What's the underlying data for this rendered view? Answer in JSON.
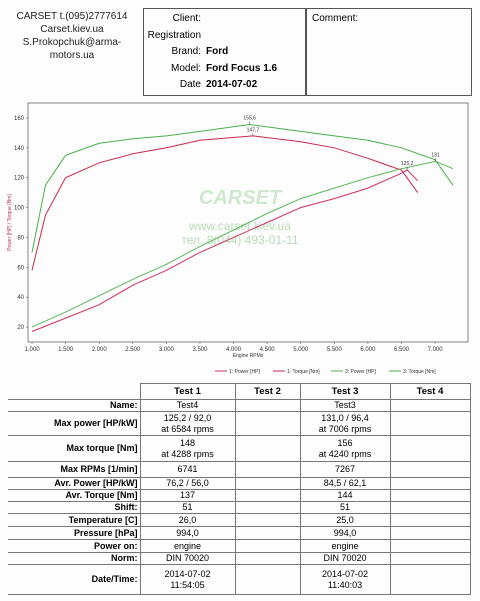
{
  "header": {
    "contact": [
      "CARSET  t.(095)2777614",
      "Carset.kiev.ua",
      "S.Prokopchuk@arma-motors.ua"
    ],
    "fields": [
      {
        "label": "Client:",
        "value": null
      },
      {
        "label": "Registration",
        "value": null
      },
      {
        "label": "Brand:",
        "value": "Ford"
      },
      {
        "label": "Model:",
        "value": "Ford Focus 1.6"
      },
      {
        "label": "Date",
        "value": "2014-07-02"
      }
    ],
    "comment": "Comment:"
  },
  "chart_data": {
    "type": "line",
    "y_label": "Power [HP] / Torque [Nm]",
    "x_label": "Engine RPMs",
    "xlim": [
      940,
      7490
    ],
    "ylim": [
      10,
      170
    ],
    "xticks": [
      {
        "value": 1000,
        "label": "1.000"
      },
      {
        "value": 1500,
        "label": "1.500"
      },
      {
        "value": 2000,
        "label": "2.000"
      },
      {
        "value": 2500,
        "label": "2.500"
      },
      {
        "value": 3000,
        "label": "3.000"
      },
      {
        "value": 3500,
        "label": "3.500"
      },
      {
        "value": 4000,
        "label": "4.000"
      },
      {
        "value": 4500,
        "label": "4.500"
      },
      {
        "value": 5000,
        "label": "5.000"
      },
      {
        "value": 5500,
        "label": "5.500"
      },
      {
        "value": 6000,
        "label": "6.000"
      },
      {
        "value": 6500,
        "label": "6.500"
      },
      {
        "value": 7000,
        "label": "7.000"
      }
    ],
    "yticks": [
      20,
      40,
      60,
      80,
      100,
      120,
      140,
      160
    ],
    "grid": false,
    "series": [
      {
        "name": "1: Power [HP]",
        "color": "#d0305a",
        "x": [
          1000,
          1500,
          2000,
          2500,
          3000,
          3500,
          4000,
          4500,
          5000,
          5500,
          6000,
          6500,
          6584,
          6741
        ],
        "values": [
          17,
          26,
          35,
          48,
          58,
          70,
          80,
          90,
          100,
          106,
          113,
          123,
          125.2,
          118
        ]
      },
      {
        "name": "1: Torque [Nm]",
        "color": "#c8284a",
        "x": [
          1000,
          1200,
          1500,
          2000,
          2500,
          3000,
          3500,
          4288,
          5000,
          5500,
          6000,
          6500,
          6741
        ],
        "values": [
          58,
          95,
          120,
          130,
          136,
          140,
          145,
          148,
          144,
          140,
          133,
          125,
          110
        ]
      },
      {
        "name": "3: Power [HP]",
        "color": "#58b858",
        "x": [
          1000,
          1500,
          2000,
          2500,
          3000,
          3500,
          4000,
          4500,
          5000,
          5500,
          6000,
          6500,
          7006,
          7267
        ],
        "values": [
          20,
          30,
          41,
          52,
          62,
          74,
          85,
          96,
          106,
          113,
          120,
          126,
          131,
          126
        ]
      },
      {
        "name": "3: Torque [Nm]",
        "color": "#48b048",
        "x": [
          1000,
          1200,
          1500,
          2000,
          2500,
          3000,
          3500,
          4240,
          5000,
          5500,
          6000,
          6500,
          7000,
          7267
        ],
        "values": [
          70,
          115,
          135,
          143,
          146,
          148,
          151,
          155.6,
          151,
          148,
          145,
          140,
          132,
          115
        ]
      }
    ],
    "annotations": [
      {
        "label": "155,6",
        "x": 4240,
        "y": 155.6
      },
      {
        "label": "147,7",
        "x": 4288,
        "y": 147.7
      },
      {
        "label": "125,2",
        "x": 6584,
        "y": 125.2
      },
      {
        "label": "131",
        "x": 7006,
        "y": 131
      }
    ],
    "watermark": {
      "logo": "CARSET",
      "site": "www.carset.kiev.ua",
      "phone": "тел. 8(044) 493-01-11"
    }
  },
  "table": {
    "columns": [
      "Test 1",
      "Test 2",
      "Test 3",
      "Test 4"
    ],
    "rows": [
      [
        "Name:",
        "Test4",
        null,
        "Test3",
        null
      ],
      [
        "Max power [HP/kW]",
        [
          "125,2 / 92,0",
          "at 6584 rpms"
        ],
        null,
        [
          "131,0 / 96,4",
          "at 7006 rpms"
        ],
        null
      ],
      [
        "Max torque [Nm]",
        [
          "148",
          "at 4288 rpms"
        ],
        null,
        [
          "156",
          "at 4240 rpms"
        ],
        null
      ],
      [
        "Max RPMs [1/min]",
        "6741",
        null,
        "7267",
        null
      ],
      [
        "Avr. Power [HP/kW]",
        "76,2 / 56,0",
        null,
        "84,5 / 62,1",
        null
      ],
      [
        "Avr. Torque [Nm]",
        "137",
        null,
        "144",
        null
      ],
      [
        "Shift:",
        "51",
        null,
        "51",
        null
      ],
      [
        "Temperature [C]",
        "26,0",
        null,
        "25,0",
        null
      ],
      [
        "Pressure [hPa]",
        "994,0",
        null,
        "994,0",
        null
      ],
      [
        "Power on:",
        "engine",
        null,
        "engine",
        null
      ],
      [
        "Norm:",
        "DIN 70020",
        null,
        "DIN 70020",
        null
      ],
      [
        "Date/Time:",
        [
          "2014-07-02",
          "11:54:05"
        ],
        null,
        [
          "2014-07-02",
          "11:40:03"
        ],
        null
      ]
    ]
  }
}
